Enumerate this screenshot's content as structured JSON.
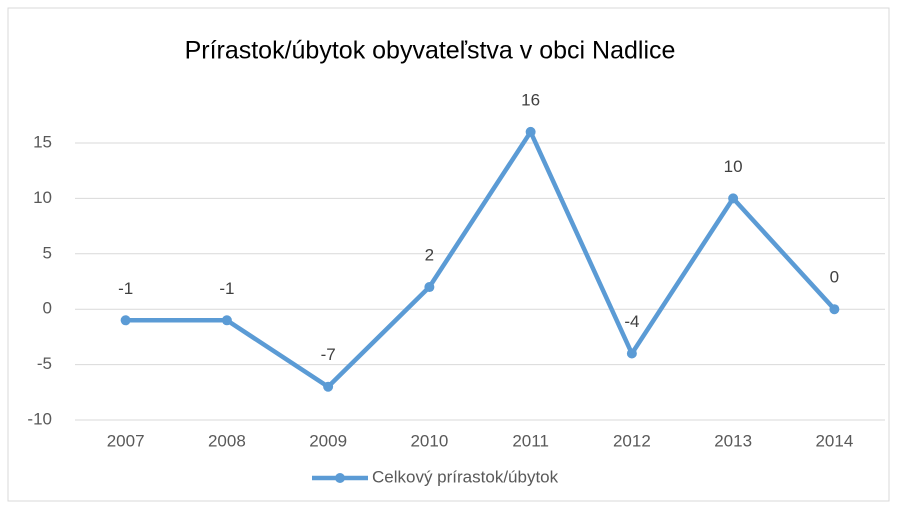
{
  "chart_data": {
    "type": "line",
    "title": "Prírastok/úbytok obyvateľstva v obci Nadlice",
    "categories": [
      "2007",
      "2008",
      "2009",
      "2010",
      "2011",
      "2012",
      "2013",
      "2014"
    ],
    "series": [
      {
        "name": "Celkový prírastok/úbytok",
        "color": "#5b9bd5",
        "values": [
          -1,
          -1,
          -7,
          2,
          16,
          -4,
          10,
          0
        ]
      }
    ],
    "ylim": [
      -10,
      15
    ],
    "yticks": [
      -10,
      -5,
      0,
      5,
      10,
      15
    ],
    "grid": true,
    "legend": "bottom"
  }
}
